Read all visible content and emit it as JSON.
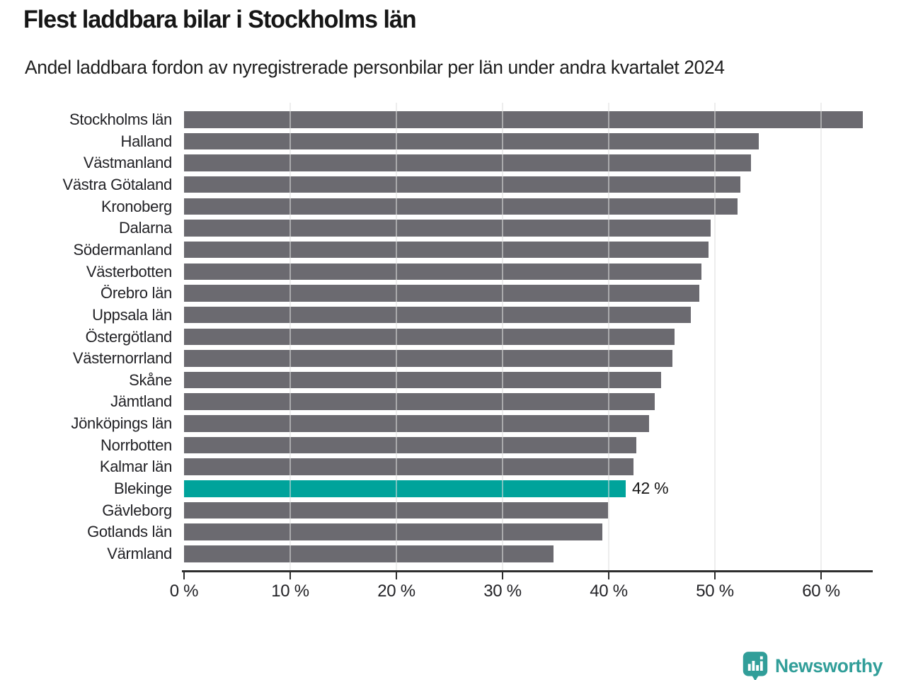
{
  "chart_data": {
    "type": "bar",
    "orientation": "horizontal",
    "title": "Flest laddbara bilar i Stockholms län",
    "subtitle": "Andel laddbara fordon av nyregistrerade personbilar per län under andra kvartalet 2024",
    "categories": [
      "Stockholms län",
      "Halland",
      "Västmanland",
      "Västra Götaland",
      "Kronoberg",
      "Dalarna",
      "Södermanland",
      "Västerbotten",
      "Örebro län",
      "Uppsala län",
      "Östergötland",
      "Västernorrland",
      "Skåne",
      "Jämtland",
      "Jönköpings län",
      "Norrbotten",
      "Kalmar län",
      "Blekinge",
      "Gävleborg",
      "Gotlands län",
      "Värmland"
    ],
    "values": [
      63.9,
      54.1,
      53.4,
      52.4,
      52.1,
      49.6,
      49.4,
      48.7,
      48.5,
      47.7,
      46.2,
      46.0,
      44.9,
      44.3,
      43.8,
      42.6,
      42.3,
      41.6,
      39.9,
      39.4,
      34.8
    ],
    "unit": "%",
    "highlight": {
      "index": 17,
      "category": "Blekinge",
      "label": "42 %"
    },
    "x_ticks": [
      {
        "label": "0 %",
        "value": 0
      },
      {
        "label": "10 %",
        "value": 10
      },
      {
        "label": "20 %",
        "value": 20
      },
      {
        "label": "30 %",
        "value": 30
      },
      {
        "label": "40 %",
        "value": 40
      },
      {
        "label": "50 %",
        "value": 50
      },
      {
        "label": "60 %",
        "value": 60
      }
    ],
    "xlim": [
      0,
      64.9
    ],
    "grid": "vertical-light"
  },
  "colors": {
    "bar": "#6b6a70",
    "highlight": "#00a39b",
    "grid": "rgba(223,223,223,0.55)",
    "axis": "#2e2e2e",
    "text": "#222226",
    "logo": "#319e99"
  },
  "branding": {
    "name": "Newsworthy"
  }
}
